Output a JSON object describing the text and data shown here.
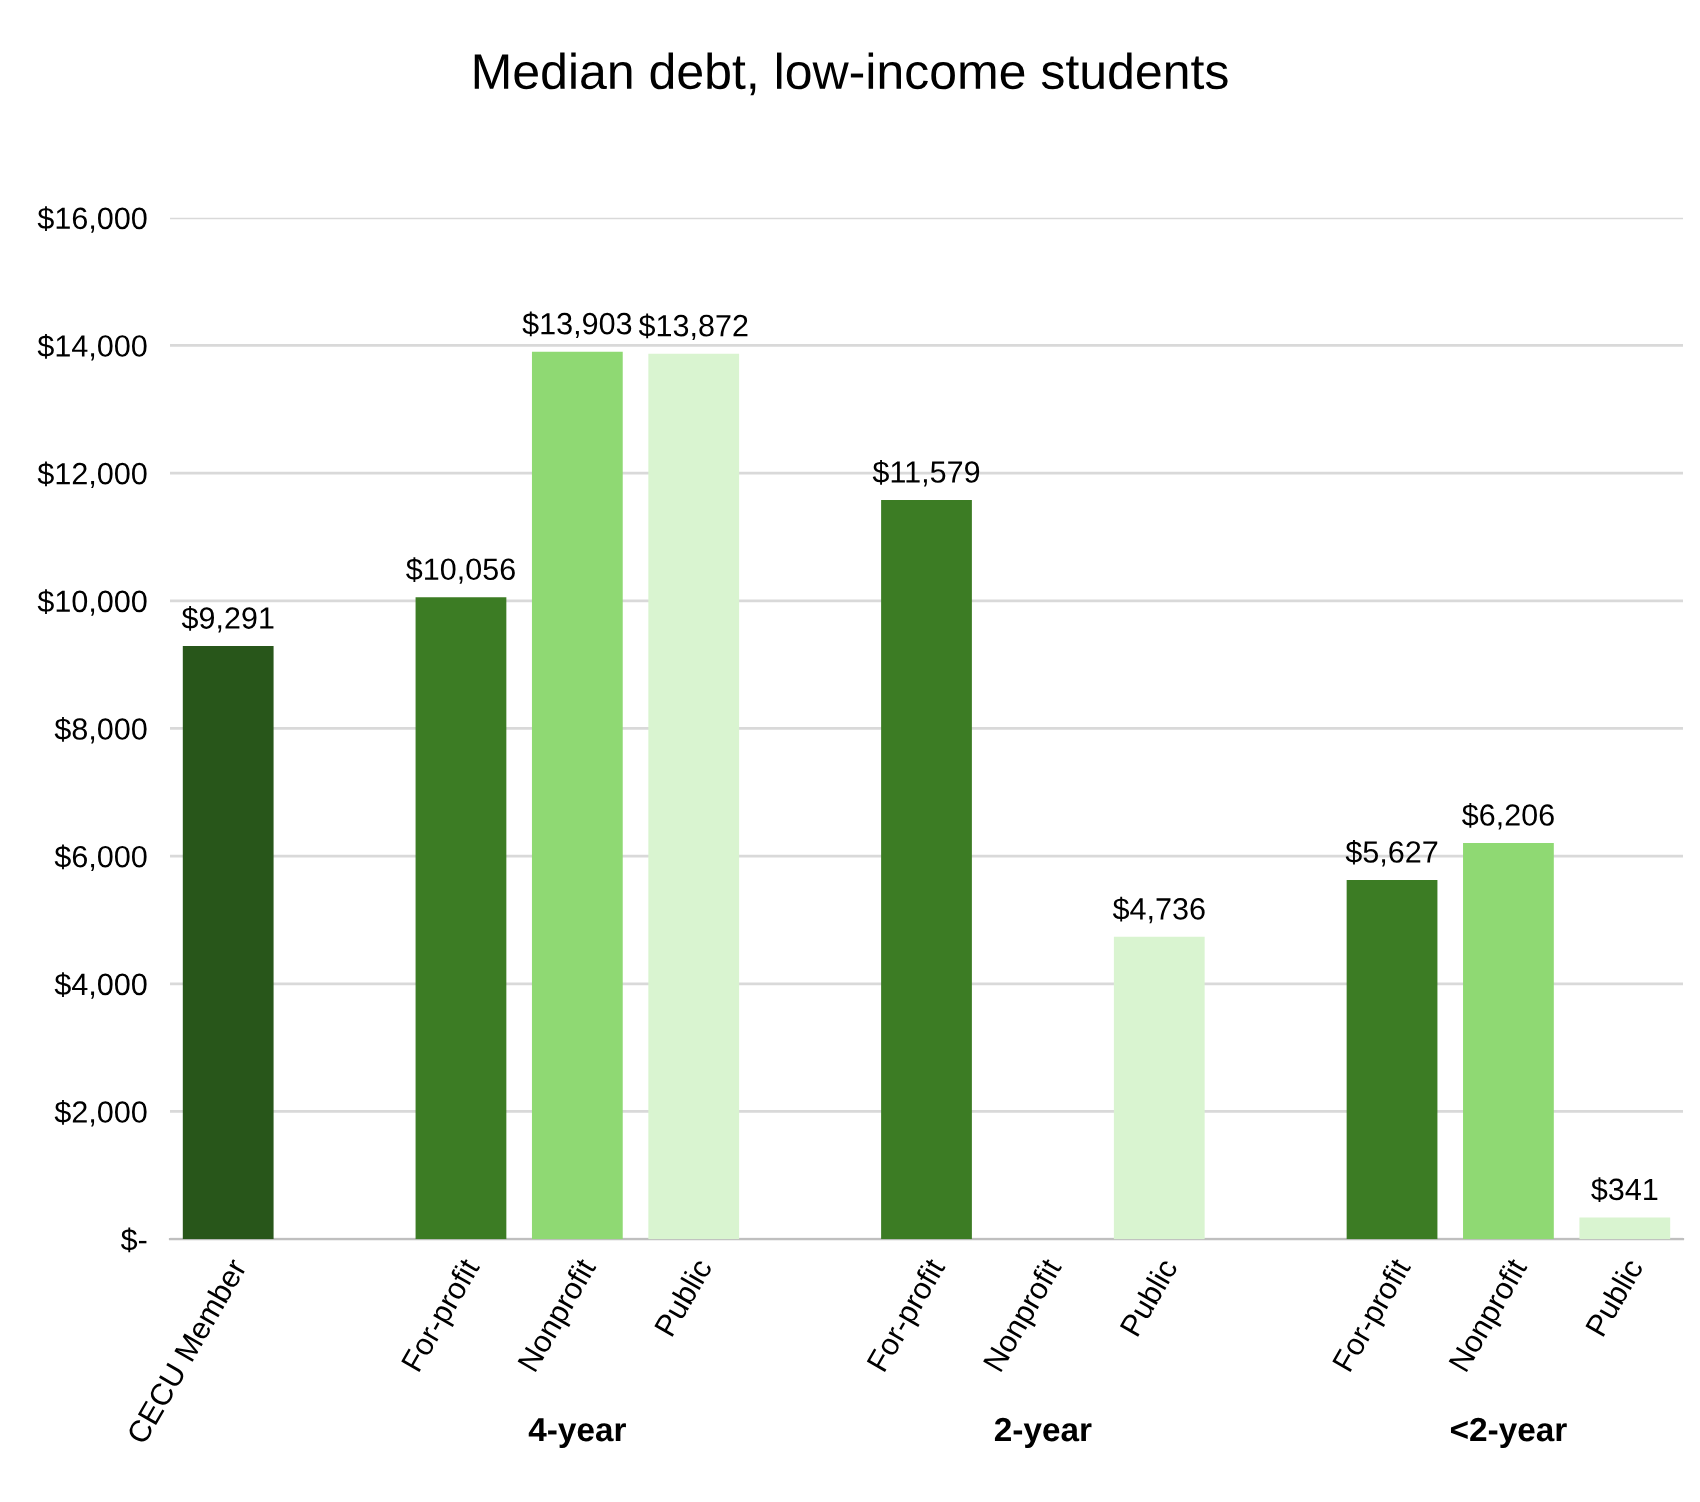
{
  "chart_data": {
    "type": "bar",
    "title": "Median debt, low-income students",
    "categories": [
      "CECU Member",
      null,
      "For-profit",
      "Nonprofit",
      "Public",
      null,
      "For-profit",
      "Nonprofit",
      "Public",
      null,
      "For-profit",
      "Nonprofit",
      "Public"
    ],
    "values": [
      9291,
      null,
      10056,
      13903,
      13872,
      null,
      11579,
      null,
      4736,
      null,
      5627,
      6206,
      341
    ],
    "colors": [
      "#28561a",
      null,
      "#3c7c24",
      "#8fd973",
      "#d9f4d0",
      null,
      "#3c7c24",
      "#8fd973",
      "#d9f4d0",
      null,
      "#3c7c24",
      "#8fd973",
      "#d9f4d0"
    ],
    "value_labels": [
      "$9,291",
      null,
      "$10,056",
      "$13,903",
      "$13,872",
      null,
      "$11,579",
      null,
      "$4,736",
      null,
      "$5,627",
      "$6,206",
      "$341"
    ],
    "ylim": [
      0,
      16000
    ],
    "yticks": [
      {
        "value": 0,
        "label": "$-"
      },
      {
        "value": 2000,
        "label": "$2,000"
      },
      {
        "value": 4000,
        "label": "$4,000"
      },
      {
        "value": 6000,
        "label": "$6,000"
      },
      {
        "value": 8000,
        "label": "$8,000"
      },
      {
        "value": 10000,
        "label": "$10,000"
      },
      {
        "value": 12000,
        "label": "$12,000"
      },
      {
        "value": 14000,
        "label": "$14,000"
      },
      {
        "value": 16000,
        "label": "$16,000"
      }
    ],
    "grid": "y",
    "annotations": [
      "4-year",
      "2-year",
      "<2-year"
    ]
  }
}
